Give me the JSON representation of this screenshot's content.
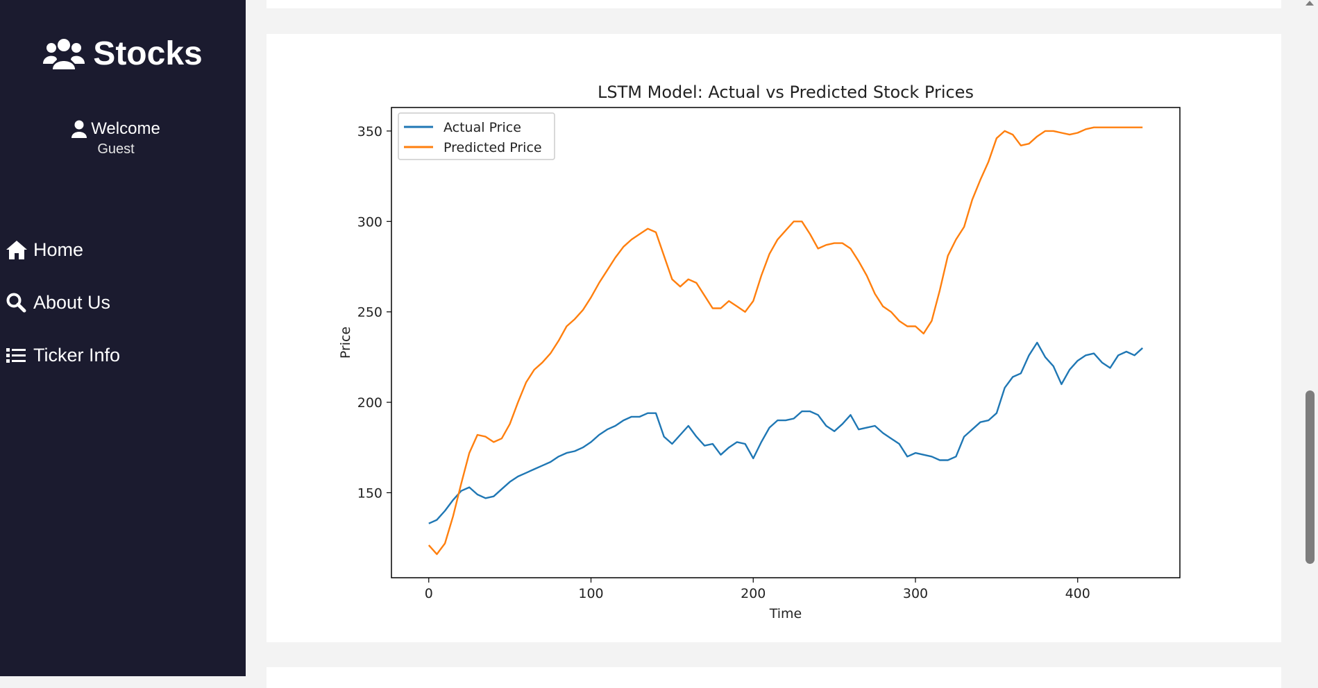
{
  "sidebar": {
    "brand": "Stocks",
    "brand_icon": "users-icon",
    "welcome": "Welcome",
    "user": "Guest",
    "nav": [
      {
        "label": "Home",
        "icon": "home-icon"
      },
      {
        "label": "About Us",
        "icon": "search-icon"
      },
      {
        "label": "Ticker Info",
        "icon": "list-icon"
      }
    ],
    "colors": {
      "background": "#1b1b2f",
      "text": "#ffffff"
    }
  },
  "chart_data": {
    "type": "line",
    "title": "LSTM Model: Actual vs Predicted Stock Prices",
    "xlabel": "Time",
    "ylabel": "Price",
    "xlim": [
      -23,
      463
    ],
    "ylim": [
      103,
      363
    ],
    "xticks": [
      0,
      100,
      200,
      300,
      400
    ],
    "yticks": [
      150,
      200,
      250,
      300,
      350
    ],
    "grid": false,
    "legend": "top-left",
    "series": [
      {
        "name": "Actual Price",
        "color": "#1f77b4",
        "x": [
          0,
          5,
          10,
          15,
          20,
          25,
          30,
          35,
          40,
          45,
          50,
          55,
          60,
          65,
          70,
          75,
          80,
          85,
          90,
          95,
          100,
          105,
          110,
          115,
          120,
          125,
          130,
          135,
          140,
          145,
          150,
          155,
          160,
          165,
          170,
          175,
          180,
          185,
          190,
          195,
          200,
          205,
          210,
          215,
          220,
          225,
          230,
          235,
          240,
          245,
          250,
          255,
          260,
          265,
          270,
          275,
          280,
          285,
          290,
          295,
          300,
          305,
          310,
          315,
          320,
          325,
          330,
          335,
          340,
          345,
          350,
          355,
          360,
          365,
          370,
          375,
          380,
          385,
          390,
          395,
          400,
          405,
          410,
          415,
          420,
          425,
          430,
          435,
          440
        ],
        "y": [
          133,
          135,
          140,
          146,
          151,
          153,
          149,
          147,
          148,
          152,
          156,
          159,
          161,
          163,
          165,
          167,
          170,
          172,
          173,
          175,
          178,
          182,
          185,
          187,
          190,
          192,
          192,
          194,
          194,
          181,
          177,
          182,
          187,
          181,
          176,
          177,
          171,
          175,
          178,
          177,
          169,
          178,
          186,
          190,
          190,
          191,
          195,
          195,
          193,
          187,
          184,
          188,
          193,
          185,
          186,
          187,
          183,
          180,
          177,
          170,
          172,
          171,
          170,
          168,
          168,
          170,
          181,
          185,
          189,
          190,
          194,
          208,
          214,
          216,
          226,
          233,
          225,
          220,
          210,
          218,
          223,
          226,
          227,
          222,
          219,
          226,
          228,
          226,
          230
        ]
      },
      {
        "name": "Predicted Price",
        "color": "#ff7f0e",
        "x": [
          0,
          5,
          10,
          15,
          20,
          25,
          30,
          35,
          40,
          45,
          50,
          55,
          60,
          65,
          70,
          75,
          80,
          85,
          90,
          95,
          100,
          105,
          110,
          115,
          120,
          125,
          130,
          135,
          140,
          145,
          150,
          155,
          160,
          165,
          170,
          175,
          180,
          185,
          190,
          195,
          200,
          205,
          210,
          215,
          220,
          225,
          230,
          235,
          240,
          245,
          250,
          255,
          260,
          265,
          270,
          275,
          280,
          285,
          290,
          295,
          300,
          305,
          310,
          315,
          320,
          325,
          330,
          335,
          340,
          345,
          350,
          355,
          360,
          365,
          370,
          375,
          380,
          385,
          390,
          395,
          400,
          405,
          410,
          415,
          420,
          425,
          430,
          435,
          440
        ],
        "y": [
          121,
          116,
          122,
          137,
          155,
          172,
          182,
          181,
          178,
          180,
          188,
          200,
          211,
          218,
          222,
          227,
          234,
          242,
          246,
          251,
          258,
          266,
          273,
          280,
          286,
          290,
          293,
          296,
          294,
          281,
          268,
          264,
          268,
          266,
          259,
          252,
          252,
          256,
          253,
          250,
          256,
          270,
          282,
          290,
          295,
          300,
          300,
          293,
          285,
          287,
          288,
          288,
          285,
          278,
          270,
          260,
          253,
          250,
          245,
          242,
          242,
          238,
          245,
          262,
          281,
          290,
          297,
          312,
          323,
          333,
          346,
          350,
          348,
          342,
          343,
          347,
          350,
          350,
          349,
          348,
          349,
          351,
          352,
          352,
          352,
          352,
          352,
          352,
          352
        ]
      }
    ]
  }
}
